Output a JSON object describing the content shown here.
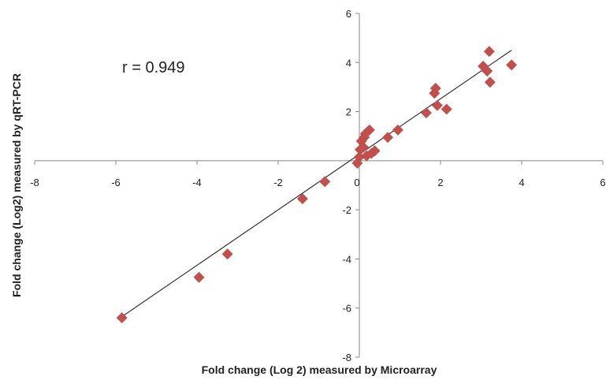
{
  "chart_data": {
    "type": "scatter",
    "xlabel": "Fold change (Log 2) measured by Microarray",
    "ylabel": "Fold change (Log2) measured by qRT-PCR",
    "annotation": "r = 0.949",
    "xlim": [
      -8,
      6
    ],
    "ylim": [
      -8,
      6
    ],
    "xticks": [
      -8,
      -6,
      -4,
      -2,
      0,
      2,
      4,
      6
    ],
    "yticks": [
      -8,
      -6,
      -4,
      -2,
      0,
      2,
      4,
      6
    ],
    "xtick_labels": [
      "-8",
      "-6",
      "-4",
      "-2",
      "0",
      "2",
      "4",
      "6"
    ],
    "ytick_labels": [
      "-8",
      "-6",
      "-4",
      "-2",
      "0",
      "2",
      "4",
      "6"
    ],
    "grid": false,
    "marker": "diamond",
    "marker_color": "#c0504d",
    "line_color": "#333333",
    "trendline": {
      "x": [
        -5.85,
        3.75
      ],
      "y": [
        -6.35,
        4.5
      ]
    },
    "points": [
      {
        "x": -5.85,
        "y": -6.4
      },
      {
        "x": -3.95,
        "y": -4.75
      },
      {
        "x": -3.25,
        "y": -3.8
      },
      {
        "x": -1.4,
        "y": -1.55
      },
      {
        "x": -0.85,
        "y": -0.85
      },
      {
        "x": -0.05,
        "y": -0.1
      },
      {
        "x": 0.0,
        "y": 0.15
      },
      {
        "x": 0.02,
        "y": 0.45
      },
      {
        "x": 0.05,
        "y": 0.8
      },
      {
        "x": 0.1,
        "y": 0.55
      },
      {
        "x": 0.12,
        "y": 0.95
      },
      {
        "x": 0.15,
        "y": 1.1
      },
      {
        "x": 0.18,
        "y": 0.2
      },
      {
        "x": 0.25,
        "y": 1.25
      },
      {
        "x": 0.3,
        "y": 0.3
      },
      {
        "x": 0.38,
        "y": 0.4
      },
      {
        "x": 0.7,
        "y": 0.95
      },
      {
        "x": 0.95,
        "y": 1.25
      },
      {
        "x": 1.65,
        "y": 1.95
      },
      {
        "x": 1.85,
        "y": 2.75
      },
      {
        "x": 1.88,
        "y": 2.95
      },
      {
        "x": 1.92,
        "y": 2.25
      },
      {
        "x": 2.15,
        "y": 2.1
      },
      {
        "x": 3.05,
        "y": 3.85
      },
      {
        "x": 3.15,
        "y": 3.65
      },
      {
        "x": 3.2,
        "y": 4.45
      },
      {
        "x": 3.22,
        "y": 3.2
      },
      {
        "x": 3.75,
        "y": 3.9
      }
    ]
  }
}
